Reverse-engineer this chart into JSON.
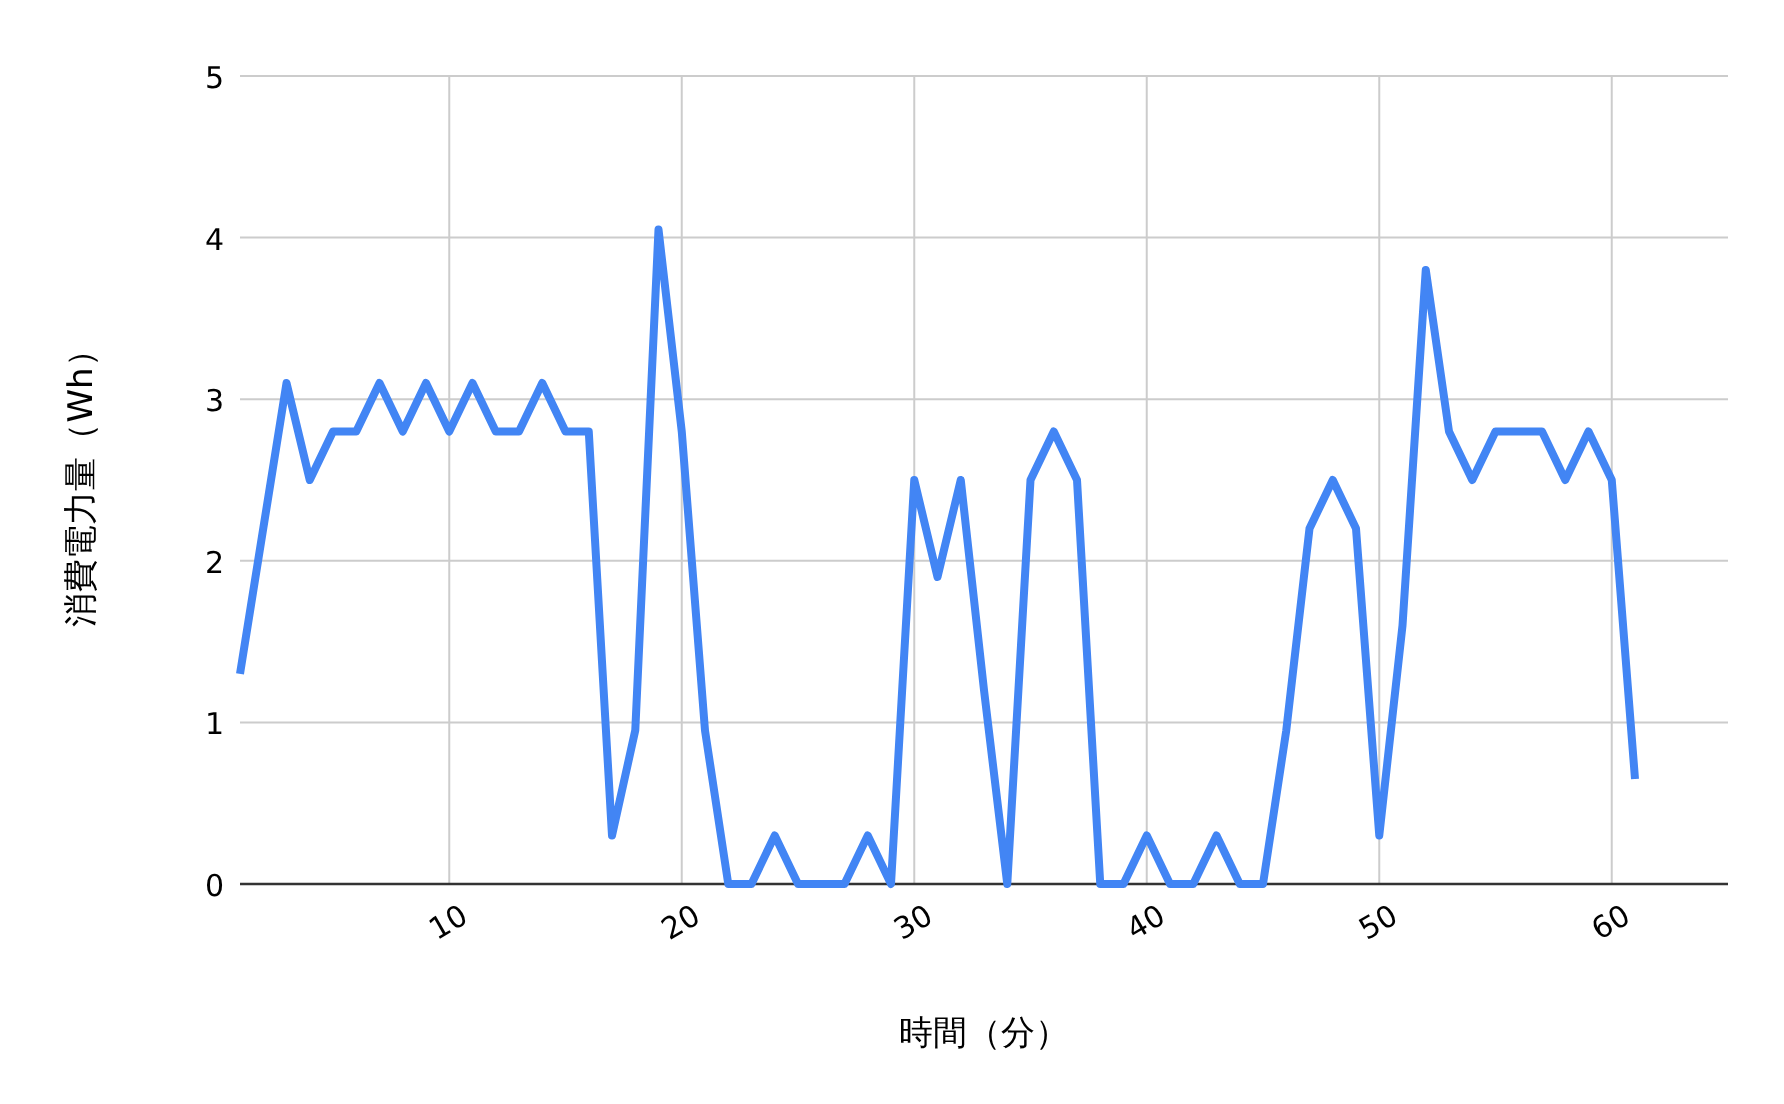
{
  "chart_data": {
    "type": "line",
    "xlabel": "時間（分）",
    "ylabel": "消費電力量（Wh）",
    "x": [
      1,
      2,
      3,
      4,
      5,
      6,
      7,
      8,
      9,
      10,
      11,
      12,
      13,
      14,
      15,
      16,
      17,
      18,
      19,
      20,
      21,
      22,
      23,
      24,
      25,
      26,
      27,
      28,
      29,
      30,
      31,
      32,
      33,
      34,
      35,
      36,
      37,
      38,
      39,
      40,
      41,
      42,
      43,
      44,
      45,
      46,
      47,
      48,
      49,
      50,
      51,
      52,
      53,
      54,
      55,
      56,
      57,
      58,
      59,
      60,
      61
    ],
    "series": [
      {
        "color": "#4285f4",
        "values": [
          1.3,
          2.2,
          3.1,
          2.5,
          2.8,
          2.8,
          3.1,
          2.8,
          3.1,
          2.8,
          3.1,
          2.8,
          2.8,
          3.1,
          2.8,
          2.8,
          0.3,
          0.95,
          4.05,
          2.8,
          0.95,
          0,
          0,
          0.3,
          0,
          0,
          0,
          0.3,
          0,
          2.5,
          1.9,
          2.5,
          1.2,
          0,
          2.5,
          2.8,
          2.5,
          0,
          0,
          0.3,
          0,
          0,
          0.3,
          0,
          0,
          0.95,
          2.2,
          2.5,
          2.2,
          0.3,
          1.6,
          3.8,
          2.8,
          2.5,
          2.8,
          2.8,
          2.8,
          2.5,
          2.8,
          2.5,
          0.65
        ]
      }
    ],
    "xlim": [
      1,
      65
    ],
    "xticks": [
      10,
      20,
      30,
      40,
      50,
      60
    ],
    "ylim": [
      0,
      5
    ],
    "yticks": [
      0,
      1,
      2,
      3,
      4,
      5
    ],
    "grid": true,
    "marker": "none",
    "line_style": "solid"
  }
}
